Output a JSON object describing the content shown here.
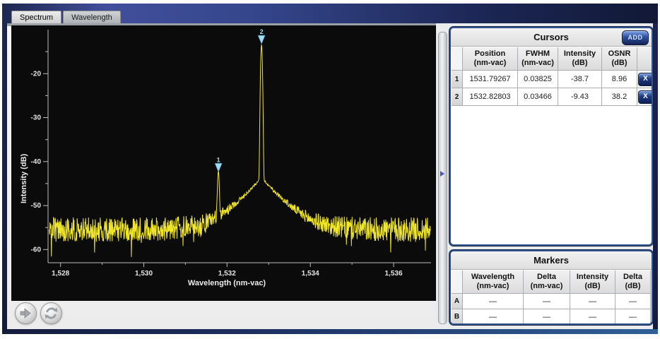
{
  "header": {
    "tabs": [
      {
        "label": "Spectrum",
        "active": true
      },
      {
        "label": "Wavelength",
        "active": false
      }
    ]
  },
  "chart_data": {
    "type": "line",
    "title": "",
    "xlabel": "Wavelength (nm-vac)",
    "ylabel": "Intensity (dB)",
    "xlim": [
      1527.7,
      1536.9
    ],
    "ylim": [
      -63,
      -10
    ],
    "x_ticks": [
      1528,
      1530,
      1532,
      1534,
      1536
    ],
    "x_tick_labels": [
      "1,528",
      "1,530",
      "1,532",
      "1,534",
      "1,536"
    ],
    "x_minor_ticks": [
      1529,
      1531,
      1533,
      1535
    ],
    "y_ticks": [
      -20,
      -30,
      -40,
      -50,
      -60
    ],
    "y_tick_labels": [
      "-20",
      "-30",
      "-40",
      "-50",
      "-60"
    ],
    "grid": false,
    "legend": "none",
    "background": "#0b0b0b",
    "trace_color": "#f0e62c",
    "cursor_color": "#9fdcf2",
    "noise_floor_db": -55.5,
    "noise_amplitude_db": 2.8,
    "pedestal": {
      "center_nm": 1532.82803,
      "peak_db": -44,
      "slope_db_per_nm": 11
    },
    "peaks": [
      {
        "id": 1,
        "center_nm": 1531.79267,
        "fwhm_nm": 0.03825,
        "intensity_db": -38.7,
        "display_db": -42.5
      },
      {
        "id": 2,
        "center_nm": 1532.82803,
        "fwhm_nm": 0.03466,
        "intensity_db": -9.43,
        "display_db": -13.4
      }
    ],
    "cursors": [
      {
        "label": "1",
        "position_nm": 1531.79267
      },
      {
        "label": "2",
        "position_nm": 1532.82803
      }
    ]
  },
  "cursors_panel": {
    "title": "Cursors",
    "add_button_label": "ADD",
    "columns": [
      {
        "l1": "Position",
        "l2": "(nm-vac)"
      },
      {
        "l1": "FWHM",
        "l2": "(nm-vac)"
      },
      {
        "l1": "Intensity",
        "l2": "(dB)"
      },
      {
        "l1": "OSNR",
        "l2": "(dB)"
      }
    ],
    "rows": [
      {
        "id": "1",
        "position": "1531.79267",
        "fwhm": "0.03825",
        "intensity": "-38.7",
        "osnr": "8.96",
        "delete_label": "X"
      },
      {
        "id": "2",
        "position": "1532.82803",
        "fwhm": "0.03466",
        "intensity": "-9.43",
        "osnr": "38.2",
        "delete_label": "X"
      }
    ]
  },
  "markers_panel": {
    "title": "Markers",
    "columns": [
      {
        "l1": "Wavelength",
        "l2": "(nm-vac)"
      },
      {
        "l1": "Delta",
        "l2": "(nm-vac)"
      },
      {
        "l1": "Intensity",
        "l2": "(dB)"
      },
      {
        "l1": "Delta",
        "l2": "(dB)"
      }
    ],
    "rows": [
      {
        "id": "A",
        "wavelength": "—",
        "delta_nm": "—",
        "intensity": "—",
        "delta_db": "—"
      },
      {
        "id": "B",
        "wavelength": "—",
        "delta_nm": "—",
        "intensity": "—",
        "delta_db": "—"
      }
    ]
  },
  "colors": {
    "accent_navy": "#1b2a58",
    "button_blue": "#2c4f9e",
    "trace_yellow": "#f0e62c",
    "cursor_cyan": "#9fdcf2"
  }
}
